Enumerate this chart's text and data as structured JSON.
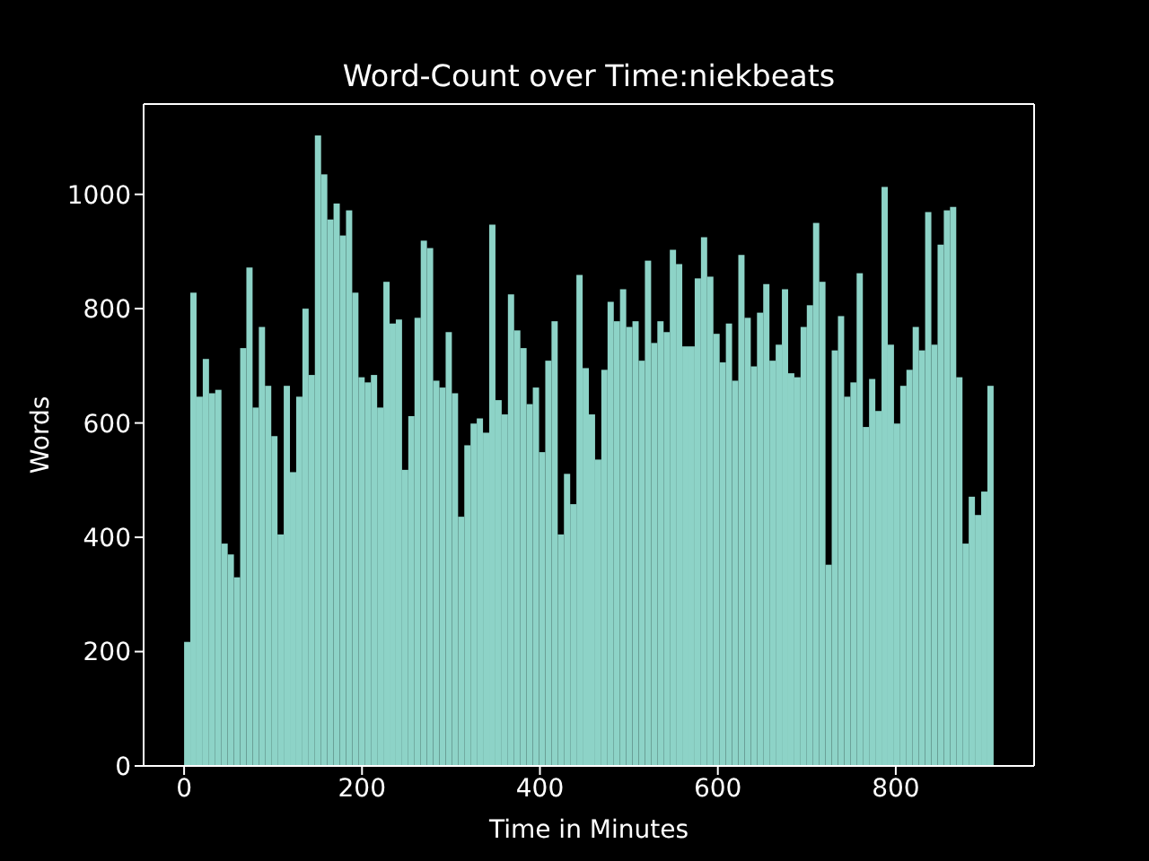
{
  "chart_data": {
    "type": "histogram",
    "title": "Word-Count over Time:niekbeats",
    "xlabel": "Time in Minutes",
    "ylabel": "Words",
    "bins": [
      0,
      7,
      14,
      21,
      28,
      35,
      42,
      49,
      56,
      63,
      70,
      77,
      84,
      91,
      98,
      105,
      112,
      119,
      126,
      133,
      140,
      147,
      154,
      161,
      168,
      175,
      182,
      189,
      196,
      203,
      210,
      217,
      224,
      231,
      238,
      245,
      252,
      259,
      266,
      273,
      280,
      287,
      294,
      301,
      308,
      315,
      322,
      329,
      336,
      343,
      350,
      357,
      364,
      371,
      378,
      385,
      392,
      399,
      406,
      413,
      420,
      427,
      434,
      441,
      448,
      455,
      462,
      469,
      476,
      483,
      490,
      497,
      504,
      511,
      518,
      525,
      532,
      539,
      546,
      553,
      560,
      567,
      574,
      581,
      588,
      595,
      602,
      609,
      616,
      623,
      630,
      637,
      644,
      651,
      658,
      665,
      672,
      679,
      686,
      693,
      700,
      707,
      714,
      721,
      728,
      735,
      742,
      749,
      756,
      763,
      770,
      777,
      784,
      791,
      798,
      805,
      812,
      819,
      826,
      833,
      840,
      847,
      854,
      861,
      868,
      875,
      882,
      889,
      896,
      903,
      910
    ],
    "values": [
      217,
      828,
      646,
      712,
      652,
      658,
      389,
      370,
      330,
      731,
      872,
      627,
      768,
      665,
      577,
      405,
      665,
      514,
      646,
      800,
      684,
      1103,
      1035,
      956,
      984,
      928,
      972,
      828,
      680,
      671,
      684,
      627,
      847,
      774,
      781,
      518,
      612,
      784,
      919,
      906,
      674,
      662,
      759,
      652,
      436,
      561,
      599,
      608,
      583,
      947,
      640,
      615,
      825,
      762,
      731,
      633,
      662,
      549,
      709,
      778,
      405,
      511,
      458,
      859,
      696,
      615,
      536,
      693,
      812,
      778,
      834,
      768,
      778,
      709,
      884,
      740,
      778,
      759,
      903,
      878,
      734,
      734,
      853,
      925,
      856,
      756,
      706,
      774,
      674,
      894,
      784,
      699,
      793,
      843,
      709,
      737,
      834,
      687,
      680,
      768,
      806,
      950,
      847,
      352,
      727,
      787,
      646,
      671,
      862,
      593,
      677,
      621,
      1013,
      737,
      599,
      665,
      693,
      768,
      727,
      969,
      737,
      912,
      972,
      978,
      680,
      389,
      471,
      439,
      480,
      665
    ],
    "color": "#8dd3c7",
    "xlim": [
      -45.5,
      955.5
    ],
    "ylim": [
      0,
      1158
    ],
    "xticks": [
      0,
      200,
      400,
      600,
      800
    ],
    "yticks": [
      0,
      200,
      400,
      600,
      800,
      1000
    ]
  }
}
